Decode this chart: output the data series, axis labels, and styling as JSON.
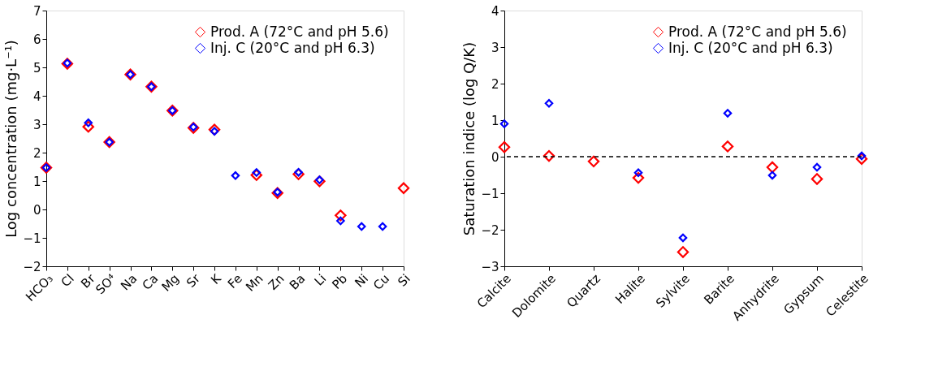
{
  "chart_data": [
    {
      "type": "scatter",
      "ylabel": "Log concentration (mg·L⁻¹)",
      "categories": [
        "HCO₃",
        "Cl",
        "Br",
        "SO⁴",
        "Na",
        "Ca",
        "Mg",
        "Sr",
        "K",
        "Fe",
        "Mn",
        "Zn",
        "Ba",
        "Li",
        "Pb",
        "Ni",
        "Cu",
        "Si"
      ],
      "series": [
        {
          "name": "Prod. A (72°C and pH 5.6)",
          "color": "#ff0000",
          "values": [
            1.47,
            5.13,
            2.91,
            2.37,
            4.75,
            4.32,
            3.48,
            2.87,
            2.81,
            null,
            1.21,
            0.58,
            1.24,
            0.99,
            -0.21,
            null,
            null,
            0.75
          ]
        },
        {
          "name": "Inj. C (20°C and pH 6.3)",
          "color": "#0000ff",
          "values": [
            1.47,
            5.15,
            3.05,
            2.37,
            4.75,
            4.32,
            3.48,
            2.9,
            2.75,
            1.19,
            1.3,
            0.61,
            1.31,
            1.04,
            -0.4,
            -0.6,
            -0.6,
            null
          ]
        }
      ],
      "ylim": [
        -2,
        7
      ],
      "yticks": [
        -2,
        -1,
        0,
        1,
        2,
        3,
        4,
        5,
        6,
        7
      ],
      "marker": "diamond",
      "legend": "top right",
      "grid": false
    },
    {
      "type": "scatter",
      "ylabel": "Saturation indice (log Q/K)",
      "categories": [
        "Calcite",
        "Dolomite",
        "Quartz",
        "Halite",
        "Sylvite",
        "Barite",
        "Anhydrite",
        "Gypsum",
        "Celestite"
      ],
      "series": [
        {
          "name": "Prod. A (72°C and pH 5.6)",
          "color": "#ff0000",
          "values": [
            0.26,
            0.02,
            -0.13,
            -0.58,
            -2.61,
            0.28,
            -0.29,
            -0.61,
            -0.06
          ]
        },
        {
          "name": "Inj. C (20°C and pH 6.3)",
          "color": "#0000ff",
          "values": [
            0.9,
            1.46,
            null,
            -0.44,
            -2.22,
            1.19,
            -0.51,
            -0.29,
            0.02
          ]
        }
      ],
      "ylim": [
        -3,
        4
      ],
      "yticks": [
        -3,
        -2,
        -1,
        0,
        1,
        2,
        3,
        4
      ],
      "marker": "diamond",
      "legend": "top right",
      "grid": false,
      "ref_lines": [
        {
          "axis": "y",
          "value": 0,
          "color": "#000000",
          "line_style": "dashed"
        }
      ]
    }
  ]
}
